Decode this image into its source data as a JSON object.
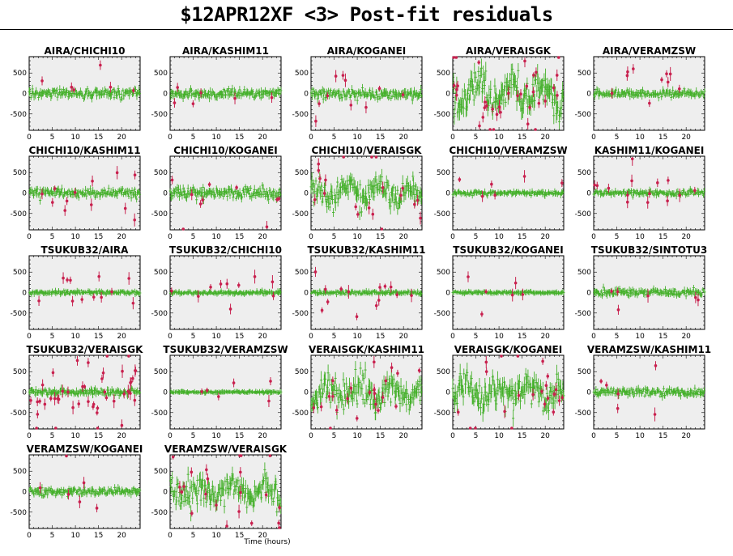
{
  "page": {
    "title": "$12APR12XF <3> Post-fit residuals"
  },
  "colors": {
    "background": "#ffffff",
    "plot_area": "#eeeeee",
    "frame": "#000000",
    "good_points": "#44b02a",
    "flagged_points": "#c8204e"
  },
  "chart_data": {
    "type": "scatter",
    "xlabel": "Time (hours)",
    "xlim": [
      0,
      24
    ],
    "ylim": [
      -900,
      900
    ],
    "x_ticks": [
      0,
      5,
      10,
      15,
      20
    ],
    "y_ticks": [
      -500,
      0,
      500
    ],
    "grid": false,
    "legend": "none",
    "baselines": [
      {
        "name": "AIRA/CHICHI10",
        "scatter": 75,
        "flagged_count": 6,
        "flagged_scale": 350
      },
      {
        "name": "AIRA/KASHIM11",
        "scatter": 70,
        "flagged_count": 6,
        "flagged_scale": 300
      },
      {
        "name": "AIRA/KOGANEI",
        "scatter": 80,
        "flagged_count": 10,
        "flagged_scale": 350
      },
      {
        "name": "AIRA/VERAISGK",
        "scatter": 300,
        "flagged_count": 35,
        "flagged_scale": 700
      },
      {
        "name": "AIRA/VERAMZSW",
        "scatter": 60,
        "flagged_count": 10,
        "flagged_scale": 300
      },
      {
        "name": "CHICHI10/KASHIM11",
        "scatter": 70,
        "flagged_count": 12,
        "flagged_scale": 300
      },
      {
        "name": "CHICHI10/KOGANEI",
        "scatter": 90,
        "flagged_count": 10,
        "flagged_scale": 400
      },
      {
        "name": "CHICHI10/VERAISGK",
        "scatter": 220,
        "flagged_count": 20,
        "flagged_scale": 650
      },
      {
        "name": "CHICHI10/VERAMZSW",
        "scatter": 40,
        "flagged_count": 6,
        "flagged_scale": 300
      },
      {
        "name": "KASHIM11/KOGANEI",
        "scatter": 45,
        "flagged_count": 14,
        "flagged_scale": 400
      },
      {
        "name": "TSUKUB32/AIRA",
        "scatter": 30,
        "flagged_count": 12,
        "flagged_scale": 250
      },
      {
        "name": "TSUKUB32/CHICHI10",
        "scatter": 28,
        "flagged_count": 10,
        "flagged_scale": 250
      },
      {
        "name": "TSUKUB32/KASHIM11",
        "scatter": 28,
        "flagged_count": 14,
        "flagged_scale": 250
      },
      {
        "name": "TSUKUB32/KOGANEI",
        "scatter": 20,
        "flagged_count": 6,
        "flagged_scale": 300
      },
      {
        "name": "TSUKUB32/SINTOTU3",
        "scatter": 55,
        "flagged_count": 6,
        "flagged_scale": 200
      },
      {
        "name": "TSUKUB32/VERAISGK",
        "scatter": 60,
        "flagged_count": 45,
        "flagged_scale": 650
      },
      {
        "name": "TSUKUB32/VERAMZSW",
        "scatter": 15,
        "flagged_count": 6,
        "flagged_scale": 250
      },
      {
        "name": "VERAISGK/KASHIM11",
        "scatter": 250,
        "flagged_count": 22,
        "flagged_scale": 600
      },
      {
        "name": "VERAISGK/KOGANEI",
        "scatter": 270,
        "flagged_count": 22,
        "flagged_scale": 650
      },
      {
        "name": "VERAMZSW/KASHIM11",
        "scatter": 65,
        "flagged_count": 6,
        "flagged_scale": 400
      },
      {
        "name": "VERAMZSW/KOGANEI",
        "scatter": 65,
        "flagged_count": 6,
        "flagged_scale": 350
      },
      {
        "name": "VERAMZSW/VERAISGK",
        "scatter": 230,
        "flagged_count": 22,
        "flagged_scale": 650
      }
    ]
  }
}
